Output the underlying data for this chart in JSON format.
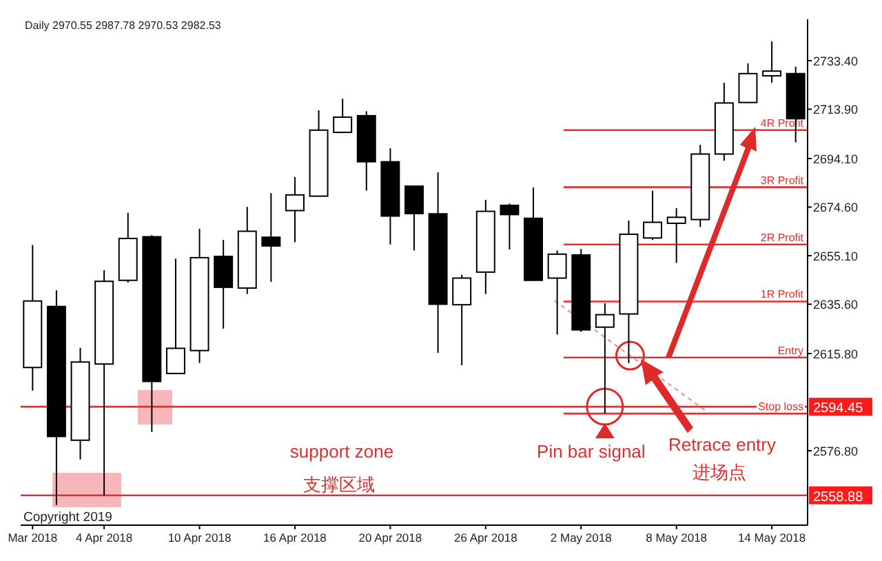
{
  "chart_data": {
    "type": "candlestick",
    "title": "Daily 2970.55 2987.78 2970.53 2982.53",
    "categories": [
      "Mar 2018",
      null,
      null,
      "4 Apr 2018",
      null,
      null,
      null,
      "10 Apr 2018",
      null,
      null,
      null,
      "16 Apr 2018",
      null,
      null,
      null,
      "20 Apr 2018",
      null,
      null,
      null,
      "26 Apr 2018",
      null,
      null,
      null,
      "2 May 2018",
      null,
      null,
      null,
      "8 May 2018",
      null,
      null,
      null,
      "14 May 2018",
      null
    ],
    "ohlc": [
      [
        2610.2,
        2659.4,
        2600.9,
        2636.9
      ],
      [
        2634.7,
        2641.2,
        2555.0,
        2582.5
      ],
      [
        2581.0,
        2618.1,
        2573.3,
        2612.4
      ],
      [
        2611.6,
        2649.3,
        2558.9,
        2644.8
      ],
      [
        2645.2,
        2672.3,
        2644.3,
        2662.0
      ],
      [
        2662.7,
        2663.3,
        2584.3,
        2604.6
      ],
      [
        2607.8,
        2653.9,
        2607.8,
        2617.9
      ],
      [
        2617.0,
        2665.9,
        2612.0,
        2654.3
      ],
      [
        2654.8,
        2661.4,
        2625.8,
        2642.4
      ],
      [
        2642.1,
        2674.7,
        2639.7,
        2664.9
      ],
      [
        2662.5,
        2680.2,
        2644.6,
        2659.0
      ],
      [
        2673.2,
        2686.7,
        2660.5,
        2679.5
      ],
      [
        2679.0,
        2713.5,
        2679.0,
        2705.5
      ],
      [
        2704.6,
        2718.1,
        2704.3,
        2710.7
      ],
      [
        2711.3,
        2713.1,
        2681.2,
        2692.8
      ],
      [
        2692.8,
        2698.2,
        2659.6,
        2671.0
      ],
      [
        2683.0,
        2683.0,
        2657.2,
        2672.0
      ],
      [
        2671.9,
        2688.6,
        2616.1,
        2635.6
      ],
      [
        2635.4,
        2647.4,
        2611.1,
        2646.1
      ],
      [
        2648.5,
        2677.5,
        2639.7,
        2672.9
      ],
      [
        2675.3,
        2676.0,
        2657.6,
        2671.6
      ],
      [
        2670.1,
        2682.5,
        2645.2,
        2645.2
      ],
      [
        2646.1,
        2657.2,
        2623.4,
        2655.7
      ],
      [
        2655.4,
        2657.8,
        2624.5,
        2625.3
      ],
      [
        2626.4,
        2636.0,
        2591.7,
        2631.4
      ],
      [
        2631.7,
        2669.2,
        2612.0,
        2663.7
      ],
      [
        2662.2,
        2681.2,
        2661.4,
        2668.5
      ],
      [
        2668.1,
        2674.2,
        2652.2,
        2670.5
      ],
      [
        2669.6,
        2699.6,
        2666.6,
        2695.9
      ],
      [
        2695.9,
        2724.5,
        2693.2,
        2716.4
      ],
      [
        2716.6,
        2732.3,
        2716.6,
        2728.2
      ],
      [
        2727.3,
        2741.1,
        2724.5,
        2729.2
      ],
      [
        2728.2,
        2731.0,
        2700.6,
        2710.1
      ]
    ],
    "ylim": [
      2546.9,
      2750.0
    ],
    "yticks": [
      {
        "value": 2733.4,
        "label": "2733.40"
      },
      {
        "value": 2713.9,
        "label": "2713.90"
      },
      {
        "value": 2694.1,
        "label": "2694.10"
      },
      {
        "value": 2674.6,
        "label": "2674.60"
      },
      {
        "value": 2655.1,
        "label": "2655.10"
      },
      {
        "value": 2635.6,
        "label": "2635.60"
      },
      {
        "value": 2615.8,
        "label": "2615.80"
      },
      {
        "value": 2576.8,
        "label": "2576.80"
      }
    ],
    "ref_lines": [
      {
        "axis": "y",
        "value": 2594.45,
        "label": "2594.45",
        "color": "#ee2a2a"
      },
      {
        "axis": "y",
        "value": 2558.88,
        "label": "2558.88",
        "color": "#ee2a2a"
      },
      {
        "axis": "y",
        "value": 2591.7,
        "label": "Stop loss",
        "color": "#ee2a2a"
      },
      {
        "axis": "y",
        "value": 2614.2,
        "label": "Entry",
        "color": "#ee2a2a"
      },
      {
        "axis": "y",
        "value": 2636.7,
        "label": "1R Profit",
        "color": "#ee2a2a"
      },
      {
        "axis": "y",
        "value": 2659.6,
        "label": "2R Profit",
        "color": "#ee2a2a"
      },
      {
        "axis": "y",
        "value": 2682.6,
        "label": "3R Profit",
        "color": "#ee2a2a"
      },
      {
        "axis": "y",
        "value": 2705.5,
        "label": "4R Profit",
        "color": "#ee2a2a"
      }
    ],
    "annotations": [
      "support zone",
      "支撑区域",
      "Pin bar signal",
      "Retrace entry",
      "进场点",
      "Copyright 2019"
    ]
  }
}
